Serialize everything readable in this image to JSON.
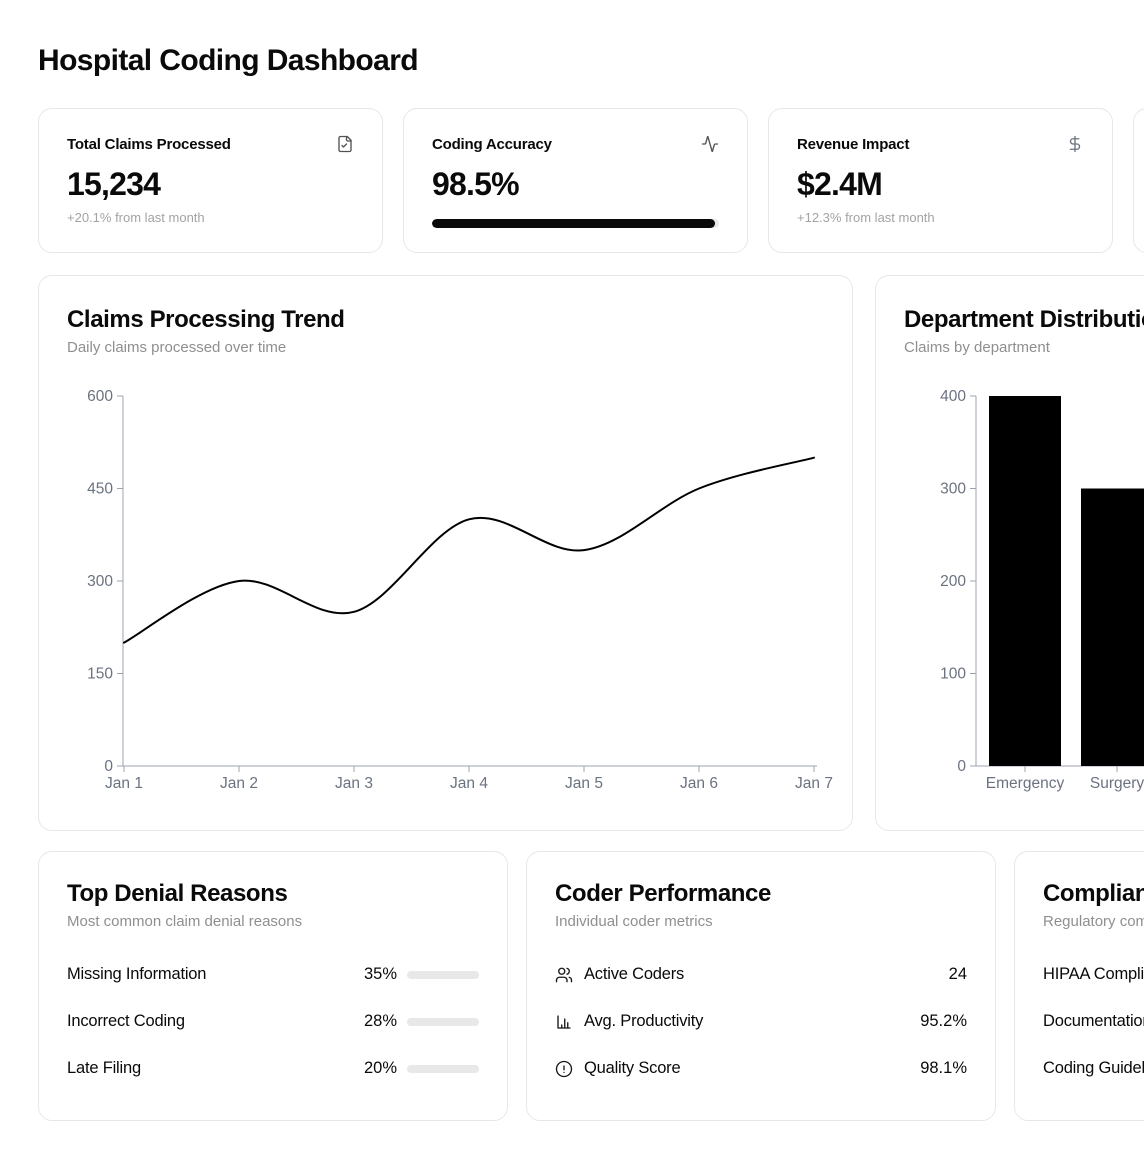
{
  "page": {
    "title": "Hospital Coding Dashboard"
  },
  "stat_cards": [
    {
      "label": "Total Claims Processed",
      "value": "15,234",
      "sub": "+20.1% from last month",
      "icon": "file-check"
    },
    {
      "label": "Coding Accuracy",
      "value": "98.5%",
      "progress_pct": 98.5,
      "icon": "activity"
    },
    {
      "label": "Revenue Impact",
      "value": "$2.4M",
      "sub": "+12.3% from last month",
      "icon": "dollar-sign"
    }
  ],
  "chart_data": [
    {
      "type": "line",
      "title": "Claims Processing Trend",
      "subtitle": "Daily claims processed over time",
      "x": [
        "Jan 1",
        "Jan 2",
        "Jan 3",
        "Jan 4",
        "Jan 5",
        "Jan 6",
        "Jan 7"
      ],
      "series": [
        {
          "name": "claims",
          "values": [
            200,
            300,
            250,
            400,
            350,
            450,
            500
          ]
        }
      ],
      "ylim": [
        0,
        600
      ],
      "yticks": [
        0,
        150,
        300,
        450,
        600
      ],
      "grid": false,
      "legend": "none",
      "line_color": "#000000"
    },
    {
      "type": "bar",
      "title": "Department Distribution",
      "subtitle": "Claims by department",
      "categories": [
        "Emergency",
        "Surgery"
      ],
      "values": [
        400,
        300
      ],
      "ylim": [
        0,
        400
      ],
      "yticks": [
        0,
        100,
        200,
        300,
        400
      ],
      "grid": false,
      "legend": "none",
      "bar_color": "#000000"
    }
  ],
  "denial_card": {
    "title": "Top Denial Reasons",
    "subtitle": "Most common claim denial reasons",
    "rows": [
      {
        "label": "Missing Information",
        "pct": "35%",
        "pct_value": 35
      },
      {
        "label": "Incorrect Coding",
        "pct": "28%",
        "pct_value": 28
      },
      {
        "label": "Late Filing",
        "pct": "20%",
        "pct_value": 20
      }
    ]
  },
  "coder_card": {
    "title": "Coder Performance",
    "subtitle": "Individual coder metrics",
    "rows": [
      {
        "icon": "users",
        "label": "Active Coders",
        "value": "24"
      },
      {
        "icon": "bar-chart",
        "label": "Avg. Productivity",
        "value": "95.2%"
      },
      {
        "icon": "alert-circle",
        "label": "Quality Score",
        "value": "98.1%"
      }
    ]
  },
  "compliance_card": {
    "title": "Compliance Status",
    "subtitle": "Regulatory compliance status",
    "rows": [
      {
        "label": "HIPAA Compliance"
      },
      {
        "label": "Documentation"
      },
      {
        "label": "Coding Guidelines"
      }
    ]
  },
  "colors": {
    "foreground": "#0a0a0a",
    "muted_text": "#8f8f8f",
    "faint_text": "#a3a3a3",
    "border": "#e7e7e7",
    "track": "#e8e8e8",
    "axis": "#9ca3af",
    "axis_text": "#6b7280"
  }
}
